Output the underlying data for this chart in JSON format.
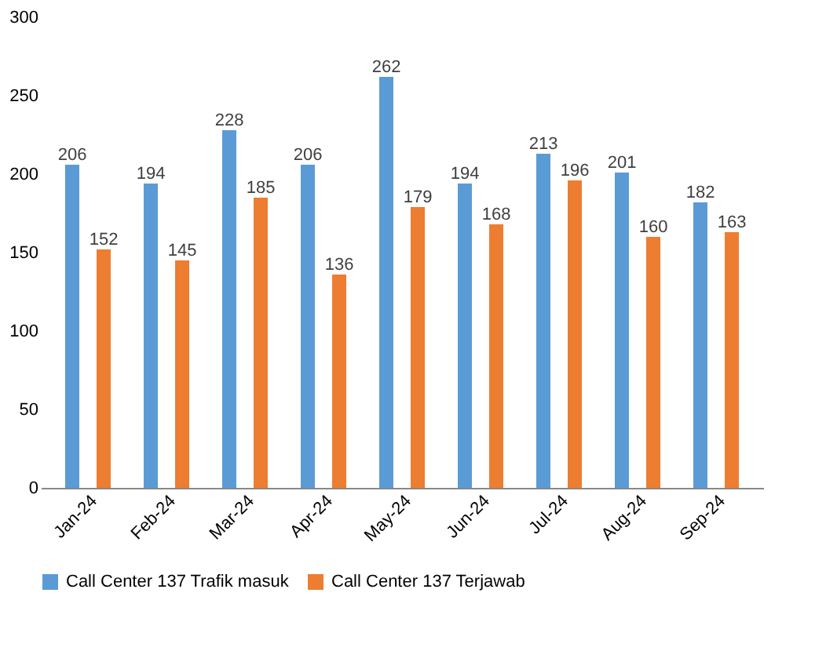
{
  "chart_data": {
    "type": "bar",
    "categories": [
      "Jan-24",
      "Feb-24",
      "Mar-24",
      "Apr-24",
      "May-24",
      "Jun-24",
      "Jul-24",
      "Aug-24",
      "Sep-24"
    ],
    "series": [
      {
        "name": "Call Center 137 Trafik masuk",
        "color": "#5b9bd5",
        "values": [
          206,
          194,
          228,
          206,
          262,
          194,
          213,
          201,
          182
        ]
      },
      {
        "name": "Call Center 137 Terjawab",
        "color": "#ed7d31",
        "values": [
          152,
          145,
          185,
          136,
          179,
          168,
          196,
          160,
          163
        ]
      }
    ],
    "ylim": [
      0,
      300
    ],
    "yticks": [
      0,
      50,
      100,
      150,
      200,
      250,
      300
    ],
    "grid": false,
    "legend": "bottom",
    "data_labels": true
  }
}
